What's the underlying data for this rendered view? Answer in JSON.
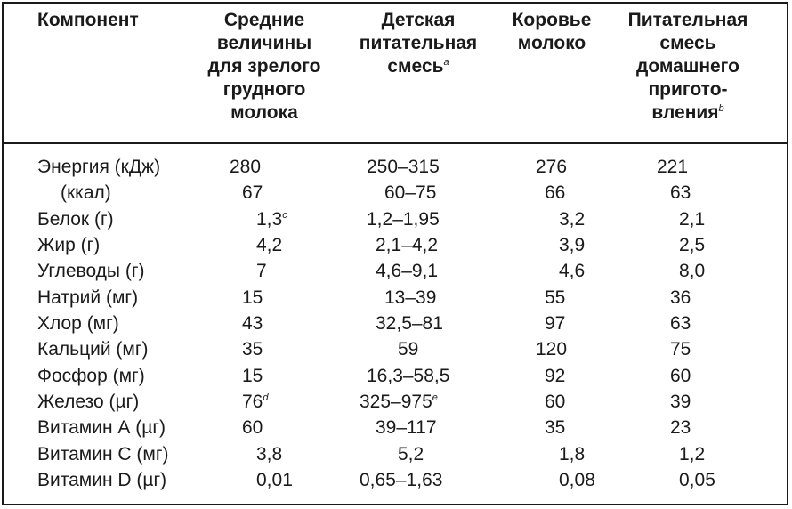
{
  "header": {
    "component": "Компонент",
    "col1": "Средние\nвеличины\nдля зрелого\nгрудного\nмолока",
    "col2": "Детская\nпитательная\nсмесь",
    "col2_note": "a",
    "col3": "Коровье\nмолоко",
    "col4": "Питательная\nсмесь\nдомашнего\nпригото-\nвления",
    "col4_note": "b"
  },
  "rows": [
    {
      "name": "Энергия (кДж)",
      "v1": "280",
      "v2": "250–315",
      "v3": "276",
      "v4": "221"
    },
    {
      "name": "(ккал)",
      "v1": "67",
      "v2": "60–75",
      "v3": "66",
      "v4": "63"
    },
    {
      "name": "Белок (г)",
      "v1": "1,3",
      "v1_note": "c",
      "v2": "1,2–1,95",
      "v3": "3,2",
      "v4": "2,1"
    },
    {
      "name": "Жир (г)",
      "v1": "4,2",
      "v2": "2,1–4,2",
      "v3": "3,9",
      "v4": "2,5"
    },
    {
      "name": "Углеводы (г)",
      "v1": "7",
      "v2": "4,6–9,1",
      "v3": "4,6",
      "v4": "8,0"
    },
    {
      "name": "Натрий (мг)",
      "v1": "15",
      "v2": "13–39",
      "v3": "55",
      "v4": "36"
    },
    {
      "name": "Хлор (мг)",
      "v1": "43",
      "v2": "32,5–81",
      "v3": "97",
      "v4": "63"
    },
    {
      "name": "Кальций (мг)",
      "v1": "35",
      "v2": "59",
      "v3": "120",
      "v4": "75"
    },
    {
      "name": "Фосфор (мг)",
      "v1": "15",
      "v2": "16,3–58,5",
      "v3": "92",
      "v4": "60"
    },
    {
      "name": "Железо (µг)",
      "v1": "76",
      "v1_note": "d",
      "v2": "325–975",
      "v2_note": "e",
      "v3": "60",
      "v4": "39"
    },
    {
      "name": "Витамин А (µг)",
      "v1": "60",
      "v2": "39–117",
      "v3": "35",
      "v4": "23"
    },
    {
      "name": "Витамин С (мг)",
      "v1": "3,8",
      "v2": "5,2",
      "v3": "1,8",
      "v4": "1,2"
    },
    {
      "name": "Витамин D (µг)",
      "v1": "0,01",
      "v2": "0,65–1,63",
      "v3": "0,08",
      "v4": "0,05"
    }
  ]
}
